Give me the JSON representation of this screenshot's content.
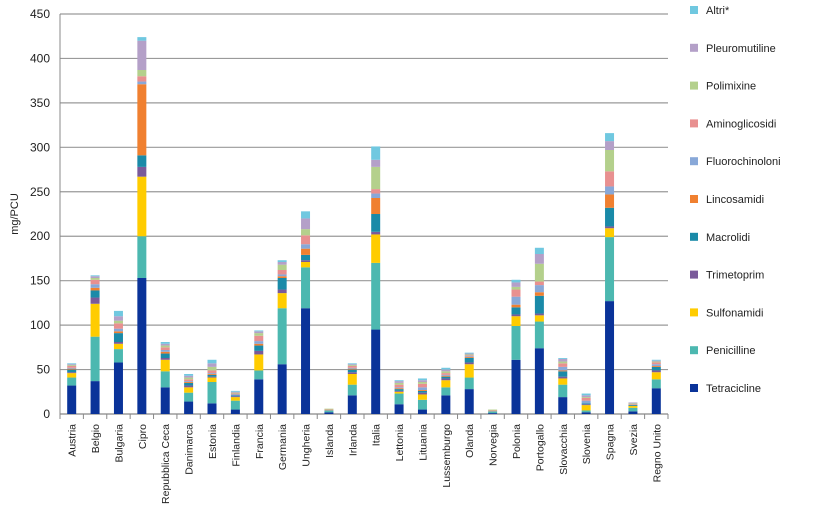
{
  "chart_data": {
    "type": "bar",
    "stacked": true,
    "ylabel": "mg/PCU",
    "xlabel": "",
    "title": "",
    "ylim": [
      0,
      450
    ],
    "yticks": [
      0,
      50,
      100,
      150,
      200,
      250,
      300,
      350,
      400,
      450
    ],
    "grid": true,
    "legend_position": "right",
    "categories": [
      "Austria",
      "Belgio",
      "Bulgaria",
      "Cipro",
      "Repubblica Ceca",
      "Danimarca",
      "Estonia",
      "Finlandia",
      "Francia",
      "Germania",
      "Ungheria",
      "Islanda",
      "Irlanda",
      "Italia",
      "Lettonia",
      "Lituania",
      "Lussemburgo",
      "Olanda",
      "Norvegia",
      "Polonia",
      "Portogallo",
      "Slovacchia",
      "Slovenia",
      "Spagna",
      "Svezia",
      "Regno Unito"
    ],
    "series": [
      {
        "name": "Tetracicline",
        "color": "#0a3399",
        "values": [
          32,
          37,
          58,
          153,
          30,
          14,
          12,
          5,
          39,
          56,
          119,
          2,
          21,
          95,
          11,
          5,
          21,
          28,
          1,
          61,
          74,
          19,
          2,
          127,
          3,
          29
        ]
      },
      {
        "name": "Penicilline",
        "color": "#4cb8b0",
        "values": [
          9,
          50,
          15,
          47,
          18,
          10,
          24,
          10,
          10,
          63,
          46,
          2,
          12,
          75,
          12,
          11,
          9,
          13,
          2,
          38,
          30,
          14,
          2,
          72,
          4,
          10
        ]
      },
      {
        "name": "Sulfonamidi",
        "color": "#ffcc00",
        "values": [
          5,
          37,
          6,
          67,
          13,
          6,
          5,
          4,
          18,
          17,
          6,
          0,
          12,
          32,
          2,
          6,
          8,
          15,
          0,
          11,
          7,
          7,
          6,
          10,
          2,
          8
        ]
      },
      {
        "name": "Trimetoprim",
        "color": "#7a5a9a",
        "values": [
          1,
          7,
          2,
          11,
          2,
          2,
          1,
          1,
          4,
          4,
          2,
          0,
          2,
          3,
          1,
          2,
          2,
          2,
          0,
          2,
          2,
          2,
          1,
          2,
          0,
          2
        ]
      },
      {
        "name": "Macrolidi",
        "color": "#1a8aa8",
        "values": [
          3,
          8,
          10,
          13,
          5,
          3,
          2,
          1,
          6,
          13,
          6,
          0,
          3,
          20,
          2,
          2,
          2,
          5,
          0,
          8,
          20,
          6,
          1,
          21,
          1,
          4
        ]
      },
      {
        "name": "Lincosamidi",
        "color": "#f08030",
        "values": [
          1,
          3,
          2,
          80,
          2,
          1,
          1,
          0,
          2,
          2,
          7,
          0,
          1,
          18,
          1,
          1,
          1,
          1,
          0,
          3,
          4,
          1,
          0,
          15,
          0,
          1
        ]
      },
      {
        "name": "Fluorochinoloni",
        "color": "#88a8d8",
        "values": [
          1,
          4,
          3,
          3,
          2,
          1,
          1,
          1,
          3,
          2,
          5,
          0,
          1,
          5,
          1,
          3,
          1,
          1,
          0,
          9,
          8,
          4,
          3,
          9,
          0,
          2
        ]
      },
      {
        "name": "Aminoglicosidi",
        "color": "#e89090",
        "values": [
          2,
          5,
          6,
          6,
          3,
          2,
          3,
          1,
          6,
          5,
          10,
          1,
          2,
          5,
          3,
          4,
          2,
          1,
          1,
          8,
          4,
          4,
          3,
          17,
          1,
          2
        ]
      },
      {
        "name": "Polimixine",
        "color": "#b4d08c",
        "values": [
          1,
          2,
          3,
          7,
          2,
          2,
          4,
          1,
          3,
          6,
          7,
          1,
          1,
          25,
          2,
          2,
          2,
          1,
          1,
          3,
          20,
          2,
          1,
          24,
          1,
          1
        ]
      },
      {
        "name": "Pleuromutiline",
        "color": "#b4a0c8",
        "values": [
          1,
          2,
          5,
          33,
          2,
          2,
          4,
          1,
          2,
          3,
          12,
          0,
          1,
          8,
          2,
          2,
          2,
          1,
          0,
          5,
          11,
          3,
          2,
          10,
          1,
          1
        ]
      },
      {
        "name": "Altri*",
        "color": "#70c8e0",
        "values": [
          1,
          1,
          6,
          4,
          2,
          2,
          4,
          1,
          1,
          2,
          8,
          0,
          1,
          15,
          1,
          2,
          2,
          1,
          0,
          3,
          7,
          1,
          2,
          9,
          0,
          1
        ]
      }
    ]
  }
}
